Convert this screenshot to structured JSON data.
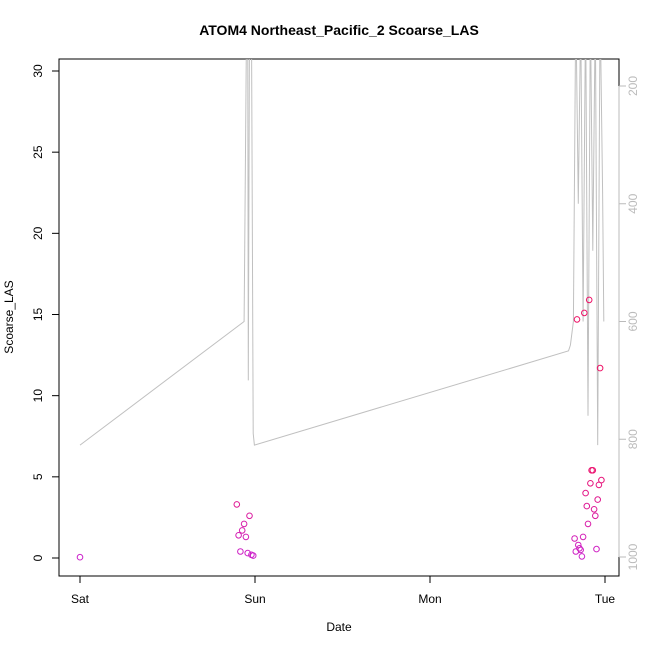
{
  "chart_data": {
    "type": "scatter",
    "title": "ATOM4 Northeast_Pacific_2 Scoarse_LAS",
    "xlabel": "Date",
    "ylabel": "Scoarse_LAS",
    "x_axis": {
      "kind": "date",
      "range": [
        "Sat 00:00",
        "Tue 00:00"
      ],
      "ticks": [
        "Sat",
        "Sun",
        "Mon",
        "Tue"
      ]
    },
    "y_axis_left": {
      "range": [
        0,
        30
      ],
      "ticks": [
        "0",
        "5",
        "10",
        "15",
        "20",
        "25",
        "30"
      ]
    },
    "y_axis_right": {
      "reversed": true,
      "range": [
        1000,
        200
      ],
      "ticks": [
        "200",
        "400",
        "600",
        "800",
        "1000"
      ],
      "color": "#bbbbbb"
    },
    "grid": false,
    "legend": "none",
    "series": [
      {
        "kind": "points",
        "color_scale": [
          "#cc22cc",
          "#ee1166"
        ],
        "x": [
          "Sat 00:00",
          "Sat 21:30",
          "Sat 21:45",
          "Sat 22:00",
          "Sat 22:15",
          "Sat 22:30",
          "Sat 22:45",
          "Sat 23:00",
          "Sat 23:15",
          "Sat 23:30",
          "Sat 23:45",
          "Mon 19:50",
          "Mon 20:00",
          "Mon 20:10",
          "Mon 20:20",
          "Mon 20:30",
          "Mon 20:40",
          "Mon 20:50",
          "Mon 21:00",
          "Mon 21:10",
          "Mon 21:20",
          "Mon 21:30",
          "Mon 21:40",
          "Mon 21:50",
          "Mon 22:00",
          "Mon 22:10",
          "Mon 22:20",
          "Mon 22:30",
          "Mon 22:40",
          "Mon 22:50",
          "Mon 23:00",
          "Mon 23:10",
          "Mon 23:20",
          "Mon 23:30"
        ],
        "y": [
          0.05,
          3.3,
          1.4,
          0.4,
          1.7,
          2.1,
          1.3,
          0.3,
          2.6,
          0.2,
          0.15,
          1.2,
          0.4,
          14.7,
          0.8,
          0.6,
          0.5,
          0.1,
          1.3,
          15.1,
          4.0,
          3.2,
          2.1,
          15.9,
          4.6,
          5.4,
          5.4,
          3.0,
          2.6,
          0.55,
          3.6,
          4.5,
          11.7,
          4.8
        ],
        "depth": [
          0,
          20,
          20,
          20,
          20,
          20,
          20,
          20,
          20,
          20,
          20,
          20,
          20,
          20,
          20,
          20,
          20,
          20,
          20,
          20,
          20,
          20,
          20,
          20,
          20,
          20,
          20,
          20,
          20,
          20,
          20,
          20,
          20,
          20
        ]
      },
      {
        "kind": "depth-line",
        "axis": "right",
        "color": "#c0c0c0",
        "x": [
          "Sat 00:00",
          "Sat 22:30",
          "Sat 22:35",
          "Sat 22:50",
          "Sat 23:00",
          "Sat 23:05",
          "Sat 23:15",
          "Sat 23:30",
          "Sat 23:45",
          "Sat 23:55",
          "Mon 19:00",
          "Mon 19:15",
          "Mon 19:40",
          "Mon 20:00",
          "Mon 20:20",
          "Mon 20:40",
          "Mon 21:00",
          "Mon 21:20",
          "Mon 21:40",
          "Mon 22:00",
          "Mon 22:20",
          "Mon 22:40",
          "Mon 23:00",
          "Mon 23:20",
          "Mon 23:40",
          "Mon 23:50"
        ],
        "y": [
          810,
          600,
          480,
          100,
          60,
          700,
          100,
          60,
          790,
          810,
          650,
          640,
          600,
          60,
          400,
          75,
          600,
          60,
          760,
          70,
          480,
          70,
          810,
          60,
          380,
          600
        ]
      }
    ]
  }
}
